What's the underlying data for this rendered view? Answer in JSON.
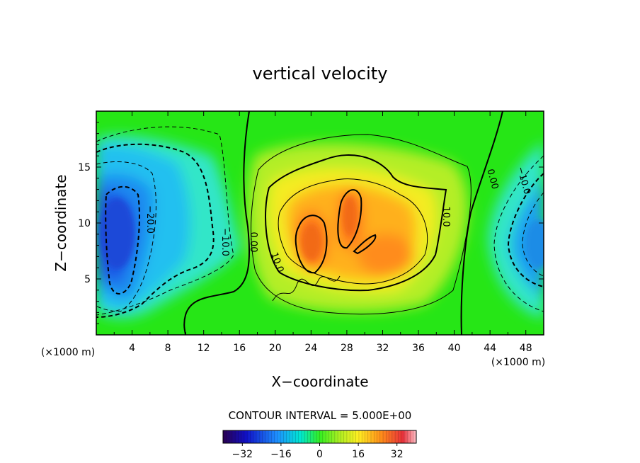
{
  "chart_data": {
    "type": "heatmap",
    "title": "vertical velocity",
    "xlabel": "X−coordinate",
    "ylabel": "Z−coordinate",
    "x_unit": "(×1000 m)",
    "y_unit": "(×1000 m)",
    "x_range": [
      0,
      50
    ],
    "y_range": [
      0,
      20
    ],
    "x_ticks": [
      "4",
      "8",
      "12",
      "16",
      "20",
      "24",
      "28",
      "32",
      "36",
      "40",
      "44",
      "48"
    ],
    "y_ticks": [
      "5",
      "10",
      "15"
    ],
    "contour_interval_text": "CONTOUR INTERVAL = 5.000E+00",
    "colorbar": {
      "range": [
        -40,
        40
      ],
      "ticks": [
        "−32",
        "−16",
        "0",
        "16",
        "32"
      ]
    },
    "contour_labels": [
      "−20.0",
      "−10.0",
      "0.00",
      "10.0",
      "10.0",
      "0.00",
      "−10.0"
    ],
    "features": [
      {
        "kind": "downdraft",
        "x": 3,
        "z": 9.5,
        "w": -30
      },
      {
        "kind": "updraft",
        "x": 25,
        "z": 8,
        "w": 25
      },
      {
        "kind": "updraft",
        "x": 29,
        "z": 10,
        "w": 22
      },
      {
        "kind": "updraft",
        "x": 33,
        "z": 7,
        "w": 18
      },
      {
        "kind": "downdraft",
        "x": 49,
        "z": 8,
        "w": -20
      }
    ]
  }
}
